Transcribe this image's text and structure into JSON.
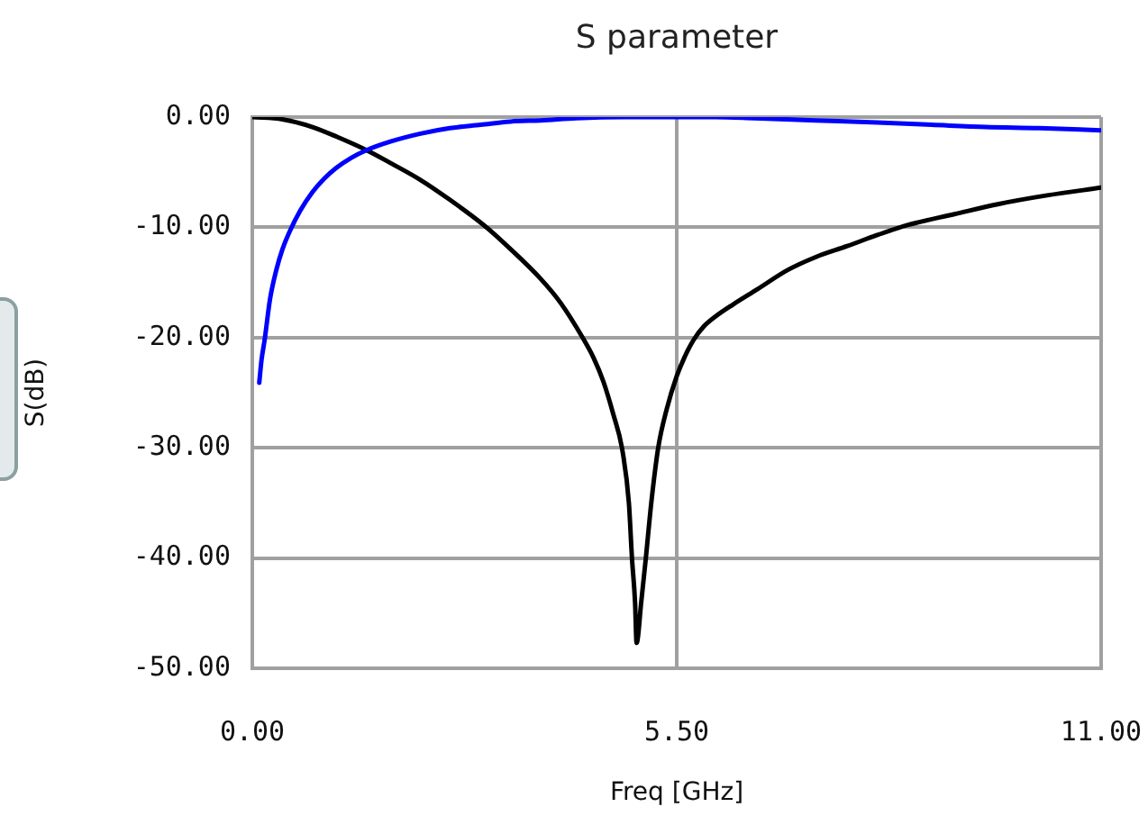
{
  "chart_data": {
    "type": "line",
    "title": "S parameter",
    "xlabel": "Freq [GHz]",
    "ylabel": "S(dB)",
    "xlim": [
      0,
      11
    ],
    "xticks": [
      {
        "value": 0,
        "label": "0.00"
      },
      {
        "value": 5.5,
        "label": "5.50"
      },
      {
        "value": 11,
        "label": "11.00"
      }
    ],
    "ylim": [
      -50,
      0
    ],
    "yticks": [
      {
        "value": -50,
        "label": "-50.00"
      },
      {
        "value": -40,
        "label": "-40.00"
      },
      {
        "value": -30,
        "label": "-30.00"
      },
      {
        "value": -20,
        "label": "-20.00"
      },
      {
        "value": -10,
        "label": "-10.00"
      },
      {
        "value": 0,
        "label": "0.00"
      }
    ],
    "grid": true,
    "series": [
      {
        "color": "#0000ff",
        "x": [
          0.09,
          0.12,
          0.16,
          0.23,
          0.31,
          0.39,
          0.47,
          0.62,
          0.78,
          0.93,
          1.09,
          1.28,
          1.48,
          1.8,
          2.18,
          2.56,
          2.96,
          3.35,
          3.74,
          4.2,
          4.8,
          5.5,
          6.0,
          6.5,
          7.3,
          8.1,
          8.8,
          9.5,
          10.2,
          11.0
        ],
        "values": [
          -24.1,
          -22.0,
          -20.2,
          -16.5,
          -13.9,
          -12.0,
          -10.6,
          -8.5,
          -6.8,
          -5.6,
          -4.6,
          -3.7,
          -3.0,
          -2.2,
          -1.5,
          -1.0,
          -0.7,
          -0.4,
          -0.3,
          -0.1,
          0.0,
          0.0,
          0.0,
          -0.1,
          -0.3,
          -0.5,
          -0.7,
          -0.9,
          -1.0,
          -1.2
        ]
      },
      {
        "color": "#000000",
        "x": [
          0,
          0.39,
          0.78,
          1.1,
          1.48,
          1.8,
          2.18,
          2.56,
          3.0,
          3.35,
          3.74,
          4.0,
          4.28,
          4.42,
          4.55,
          4.68,
          4.79,
          4.88,
          4.92,
          4.96,
          4.98,
          5.04,
          5.1,
          5.17,
          5.26,
          5.37,
          5.5,
          5.6,
          5.72,
          5.85,
          6.0,
          6.23,
          6.55,
          6.93,
          7.3,
          7.71,
          8.1,
          8.49,
          9.1,
          9.66,
          10.3,
          11.0
        ],
        "values": [
          0,
          -0.2,
          -0.9,
          -1.8,
          -3.0,
          -4.2,
          -5.7,
          -7.5,
          -9.8,
          -12.0,
          -14.7,
          -16.9,
          -20.0,
          -21.8,
          -24.0,
          -27.0,
          -30.0,
          -35.0,
          -40.0,
          -44.0,
          -47.7,
          -44.0,
          -40.0,
          -35.0,
          -30.0,
          -26.5,
          -23.5,
          -21.8,
          -20.2,
          -19.0,
          -18.1,
          -17.0,
          -15.6,
          -13.9,
          -12.7,
          -11.7,
          -10.7,
          -9.8,
          -8.8,
          -7.9,
          -7.1,
          -6.4
        ]
      }
    ]
  }
}
